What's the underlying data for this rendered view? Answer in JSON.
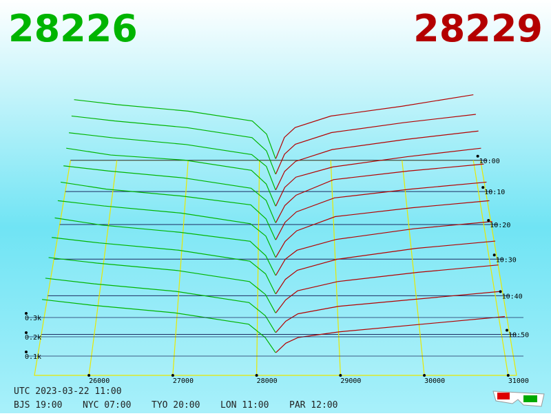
{
  "chart_data": {
    "type": "depth3d",
    "bid_price": "28226",
    "ask_price": "28229",
    "bid_color": "#00b400",
    "ask_color": "#b40000",
    "xlim": [
      25350,
      31100
    ],
    "xticks": [
      26000,
      27000,
      28000,
      29000,
      30000,
      31000
    ],
    "zticks": [
      {
        "value": 0.1,
        "label": "0.1k"
      },
      {
        "value": 0.2,
        "label": "0.2k"
      },
      {
        "value": 0.3,
        "label": "0.3k"
      }
    ],
    "tticks": [
      "10:00",
      "10:10",
      "10:20",
      "10:30",
      "10:40",
      "10:50"
    ],
    "bid_prices": [
      28226,
      28100,
      27900,
      27000,
      26000,
      25400
    ],
    "ask_prices": [
      28229,
      28350,
      28500,
      29000,
      30000,
      31000
    ],
    "slices": [
      {
        "time": "10:00",
        "bids": [
          0.01,
          0.16,
          0.24,
          0.3,
          0.34,
          0.37
        ],
        "asks": [
          0.01,
          0.14,
          0.2,
          0.27,
          0.33,
          0.4
        ]
      },
      {
        "time": "10:05",
        "bids": [
          0.01,
          0.15,
          0.23,
          0.29,
          0.33,
          0.36
        ],
        "asks": [
          0.01,
          0.13,
          0.19,
          0.26,
          0.32,
          0.37
        ]
      },
      {
        "time": "10:10",
        "bids": [
          0.01,
          0.15,
          0.22,
          0.28,
          0.32,
          0.35
        ],
        "asks": [
          0.01,
          0.12,
          0.18,
          0.25,
          0.31,
          0.36
        ]
      },
      {
        "time": "10:15",
        "bids": [
          0.01,
          0.14,
          0.22,
          0.28,
          0.31,
          0.35
        ],
        "asks": [
          0.01,
          0.12,
          0.18,
          0.24,
          0.3,
          0.35
        ]
      },
      {
        "time": "10:20",
        "bids": [
          0.01,
          0.14,
          0.21,
          0.27,
          0.31,
          0.34
        ],
        "asks": [
          0.01,
          0.11,
          0.17,
          0.26,
          0.31,
          0.35
        ]
      },
      {
        "time": "10:25",
        "bids": [
          0.01,
          0.13,
          0.21,
          0.26,
          0.3,
          0.34
        ],
        "asks": [
          0.01,
          0.11,
          0.17,
          0.25,
          0.3,
          0.34
        ]
      },
      {
        "time": "10:30",
        "bids": [
          0.01,
          0.13,
          0.2,
          0.26,
          0.3,
          0.33
        ],
        "asks": [
          0.01,
          0.1,
          0.16,
          0.24,
          0.29,
          0.33
        ]
      },
      {
        "time": "10:35",
        "bids": [
          0.01,
          0.12,
          0.2,
          0.25,
          0.29,
          0.33
        ],
        "asks": [
          0.01,
          0.1,
          0.15,
          0.21,
          0.27,
          0.31
        ]
      },
      {
        "time": "10:40",
        "bids": [
          0.01,
          0.12,
          0.19,
          0.25,
          0.29,
          0.32
        ],
        "asks": [
          0.01,
          0.09,
          0.14,
          0.2,
          0.26,
          0.3
        ]
      },
      {
        "time": "10:45",
        "bids": [
          0.01,
          0.11,
          0.18,
          0.24,
          0.28,
          0.31
        ],
        "asks": [
          0.01,
          0.08,
          0.13,
          0.18,
          0.23,
          0.27
        ]
      },
      {
        "time": "10:50",
        "bids": [
          0.01,
          0.1,
          0.17,
          0.23,
          0.27,
          0.3
        ],
        "asks": [
          0.01,
          0.07,
          0.11,
          0.15,
          0.19,
          0.23
        ]
      },
      {
        "time": "10:55",
        "bids": [
          0.01,
          0.09,
          0.16,
          0.22,
          0.26,
          0.29
        ],
        "asks": [
          0.01,
          0.06,
          0.09,
          0.12,
          0.16,
          0.2
        ]
      }
    ],
    "utc": "UTC 2023-03-22 11:00",
    "cities": [
      "BJS 19:00",
      "NYC 07:00",
      "TYO 20:00",
      "LON 11:00",
      "PAR 12:00"
    ]
  }
}
